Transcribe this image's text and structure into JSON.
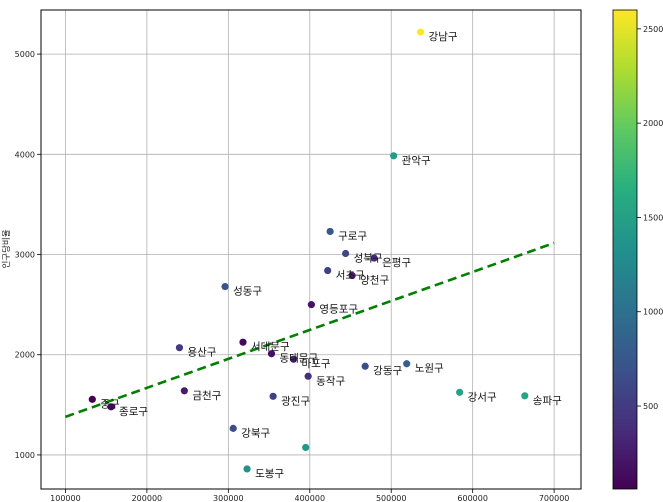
{
  "chart_data": {
    "type": "scatter",
    "title": "",
    "xlabel": "",
    "ylabel": "인구당비율",
    "xlim": [
      70000,
      733000
    ],
    "ylim": [
      660,
      5440
    ],
    "xticks": [
      100000,
      200000,
      300000,
      400000,
      500000,
      600000,
      700000
    ],
    "yticks": [
      1000,
      2000,
      3000,
      4000,
      5000
    ],
    "grid": true,
    "colormap": "viridis",
    "colorbar": {
      "min": 60,
      "max": 2600,
      "ticks": [
        500,
        1000,
        1500,
        2000,
        2500
      ]
    },
    "points": [
      {
        "label": "강남구",
        "x": 536000,
        "y": 5220,
        "c": 2600
      },
      {
        "label": "관악구",
        "x": 503000,
        "y": 3985,
        "c": 1450
      },
      {
        "label": "구로구",
        "x": 425000,
        "y": 3230,
        "c": 750
      },
      {
        "label": "성북구",
        "x": 444000,
        "y": 3010,
        "c": 600
      },
      {
        "label": "은평구",
        "x": 479000,
        "y": 2965,
        "c": 350
      },
      {
        "label": "서초구",
        "x": 422000,
        "y": 2840,
        "c": 550
      },
      {
        "label": "양천구",
        "x": 452000,
        "y": 2790,
        "c": 250
      },
      {
        "label": "성동구",
        "x": 296000,
        "y": 2680,
        "c": 700
      },
      {
        "label": "영등포구",
        "x": 402000,
        "y": 2500,
        "c": 200
      },
      {
        "label": "서대문구",
        "x": 318000,
        "y": 2125,
        "c": 120
      },
      {
        "label": "용산구",
        "x": 240000,
        "y": 2070,
        "c": 500
      },
      {
        "label": "동대문구",
        "x": 353000,
        "y": 2010,
        "c": 180
      },
      {
        "label": "마포구",
        "x": 380000,
        "y": 1955,
        "c": 300
      },
      {
        "label": "노원구",
        "x": 519000,
        "y": 1910,
        "c": 800
      },
      {
        "label": "강동구",
        "x": 468000,
        "y": 1885,
        "c": 650
      },
      {
        "label": "동작구",
        "x": 398000,
        "y": 1785,
        "c": 400
      },
      {
        "label": "금천구",
        "x": 246000,
        "y": 1640,
        "c": 250
      },
      {
        "label": "강서구",
        "x": 584000,
        "y": 1625,
        "c": 1500
      },
      {
        "label": "송파구",
        "x": 664000,
        "y": 1590,
        "c": 1550
      },
      {
        "label": "광진구",
        "x": 355000,
        "y": 1585,
        "c": 550
      },
      {
        "label": "중구",
        "x": 133000,
        "y": 1555,
        "c": 60
      },
      {
        "label": "종로구",
        "x": 156000,
        "y": 1480,
        "c": 120
      },
      {
        "label": "강북구",
        "x": 306000,
        "y": 1265,
        "c": 650
      },
      {
        "label": "",
        "x": 395000,
        "y": 1075,
        "c": 1400
      },
      {
        "label": "도봉구",
        "x": 323000,
        "y": 860,
        "c": 1350
      }
    ],
    "trendline": {
      "x": [
        100000,
        700000
      ],
      "y": [
        1380,
        3115
      ],
      "color": "#008000",
      "style": "dashed"
    }
  }
}
